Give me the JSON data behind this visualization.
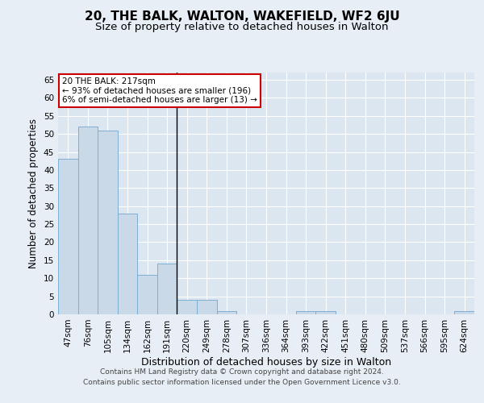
{
  "title": "20, THE BALK, WALTON, WAKEFIELD, WF2 6JU",
  "subtitle": "Size of property relative to detached houses in Walton",
  "xlabel": "Distribution of detached houses by size in Walton",
  "ylabel": "Number of detached properties",
  "categories": [
    "47sqm",
    "76sqm",
    "105sqm",
    "134sqm",
    "162sqm",
    "191sqm",
    "220sqm",
    "249sqm",
    "278sqm",
    "307sqm",
    "336sqm",
    "364sqm",
    "393sqm",
    "422sqm",
    "451sqm",
    "480sqm",
    "509sqm",
    "537sqm",
    "566sqm",
    "595sqm",
    "624sqm"
  ],
  "values": [
    43,
    52,
    51,
    28,
    11,
    14,
    4,
    4,
    1,
    0,
    0,
    0,
    1,
    1,
    0,
    0,
    0,
    0,
    0,
    0,
    1
  ],
  "bar_color": "#c9d9e8",
  "bar_edge_color": "#7bafd4",
  "vline_index": 5.5,
  "vline_color": "#000000",
  "annotation_title": "20 THE BALK: 217sqm",
  "annotation_line1": "← 93% of detached houses are smaller (196)",
  "annotation_line2": "6% of semi-detached houses are larger (13) →",
  "annotation_box_color": "#ffffff",
  "annotation_box_edge_color": "#cc0000",
  "ylim": [
    0,
    67
  ],
  "yticks": [
    0,
    5,
    10,
    15,
    20,
    25,
    30,
    35,
    40,
    45,
    50,
    55,
    60,
    65
  ],
  "background_color": "#e8eef5",
  "plot_background_color": "#dce6f0",
  "grid_color": "#ffffff",
  "footer_line1": "Contains HM Land Registry data © Crown copyright and database right 2024.",
  "footer_line2": "Contains public sector information licensed under the Open Government Licence v3.0.",
  "title_fontsize": 11,
  "subtitle_fontsize": 9.5,
  "xlabel_fontsize": 9,
  "ylabel_fontsize": 8.5,
  "tick_fontsize": 7.5,
  "footer_fontsize": 6.5,
  "annotation_fontsize": 7.5
}
